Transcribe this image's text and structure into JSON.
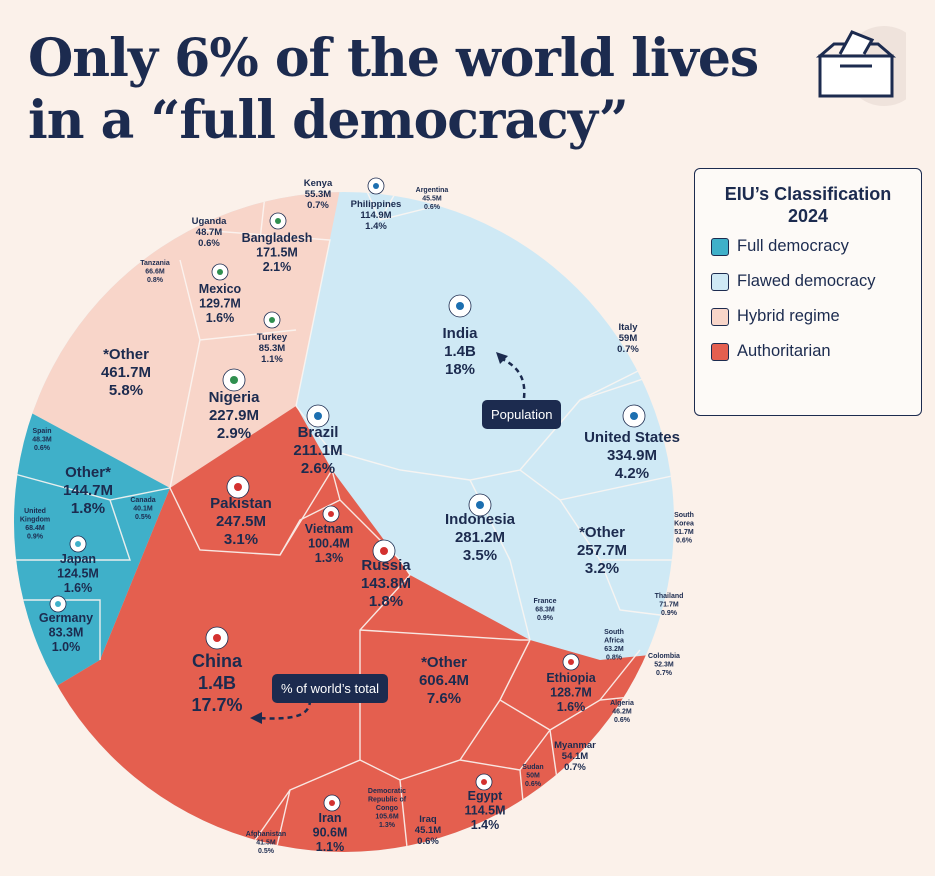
{
  "title_line1": "Only 6% of the world lives",
  "title_line2": "in a “full democracy”",
  "legend": {
    "title_line1": "EIU’s Classification",
    "title_line2": "2024",
    "items": [
      {
        "label": "Full democracy",
        "color": "#3fb0c9"
      },
      {
        "label": "Flawed democracy",
        "color": "#cfe9f5"
      },
      {
        "label": "Hybrid regime",
        "color": "#f8d5c9"
      },
      {
        "label": "Authoritarian",
        "color": "#e45f4f"
      }
    ]
  },
  "callouts": {
    "population": "Population",
    "share": "% of world’s total"
  },
  "chart_data": {
    "type": "voronoi-treemap",
    "title": "Only 6% of the world lives in a “full democracy”",
    "categories": [
      {
        "name": "Flawed democracy",
        "color": "#cfe9f5",
        "countries": [
          {
            "name": "India",
            "population": "1.4B",
            "share": "18%"
          },
          {
            "name": "Indonesia",
            "population": "281.2M",
            "share": "3.5%"
          },
          {
            "name": "United States",
            "population": "334.9M",
            "share": "4.2%"
          },
          {
            "name": "*Other",
            "population": "257.7M",
            "share": "3.2%"
          },
          {
            "name": "Brazil",
            "population": "211.1M",
            "share": "2.6%"
          },
          {
            "name": "Philippines",
            "population": "114.9M",
            "share": "1.4%"
          },
          {
            "name": "Argentina",
            "population": "45.5M",
            "share": "0.6%"
          },
          {
            "name": "Italy",
            "population": "59M",
            "share": "0.7%"
          },
          {
            "name": "South Korea",
            "population": "51.7M",
            "share": "0.6%"
          },
          {
            "name": "Thailand",
            "population": "71.7M",
            "share": "0.9%"
          },
          {
            "name": "France",
            "population": "68.3M",
            "share": "0.9%"
          },
          {
            "name": "South Africa",
            "population": "63.2M",
            "share": "0.8%"
          },
          {
            "name": "Colombia",
            "population": "52.3M",
            "share": "0.7%"
          }
        ]
      },
      {
        "name": "Hybrid regime",
        "color": "#f8d5c9",
        "countries": [
          {
            "name": "*Other",
            "population": "461.7M",
            "share": "5.8%"
          },
          {
            "name": "Nigeria",
            "population": "227.9M",
            "share": "2.9%"
          },
          {
            "name": "Bangladesh",
            "population": "171.5M",
            "share": "2.1%"
          },
          {
            "name": "Mexico",
            "population": "129.7M",
            "share": "1.6%"
          },
          {
            "name": "Turkey",
            "population": "85.3M",
            "share": "1.1%"
          },
          {
            "name": "Kenya",
            "population": "55.3M",
            "share": "0.7%"
          },
          {
            "name": "Uganda",
            "population": "48.7M",
            "share": "0.6%"
          },
          {
            "name": "Tanzania",
            "population": "66.6M",
            "share": "0.8%"
          }
        ]
      },
      {
        "name": "Full democracy",
        "color": "#3fb0c9",
        "countries": [
          {
            "name": "Other*",
            "population": "144.7M",
            "share": "1.8%"
          },
          {
            "name": "Japan",
            "population": "124.5M",
            "share": "1.6%"
          },
          {
            "name": "Germany",
            "population": "83.3M",
            "share": "1.0%"
          },
          {
            "name": "Spain",
            "population": "48.3M",
            "share": "0.6%"
          },
          {
            "name": "United Kingdom",
            "population": "68.4M",
            "share": "0.9%"
          },
          {
            "name": "Canada",
            "population": "40.1M",
            "share": "0.5%"
          }
        ]
      },
      {
        "name": "Authoritarian",
        "color": "#e45f4f",
        "countries": [
          {
            "name": "China",
            "population": "1.4B",
            "share": "17.7%"
          },
          {
            "name": "*Other",
            "population": "606.4M",
            "share": "7.6%"
          },
          {
            "name": "Pakistan",
            "population": "247.5M",
            "share": "3.1%"
          },
          {
            "name": "Russia",
            "population": "143.8M",
            "share": "1.8%"
          },
          {
            "name": "Vietnam",
            "population": "100.4M",
            "share": "1.3%"
          },
          {
            "name": "Ethiopia",
            "population": "128.7M",
            "share": "1.6%"
          },
          {
            "name": "Egypt",
            "population": "114.5M",
            "share": "1.4%"
          },
          {
            "name": "Iran",
            "population": "90.6M",
            "share": "1.1%"
          },
          {
            "name": "Democratic Republic of Congo",
            "population": "105.6M",
            "share": "1.3%"
          },
          {
            "name": "Iraq",
            "population": "45.1M",
            "share": "0.6%"
          },
          {
            "name": "Sudan",
            "population": "50M",
            "share": "0.6%"
          },
          {
            "name": "Myanmar",
            "population": "54.1M",
            "share": "0.7%"
          },
          {
            "name": "Algeria",
            "population": "46.2M",
            "share": "0.6%"
          },
          {
            "name": "Afghanistan",
            "population": "41.5M",
            "share": "0.5%"
          }
        ]
      }
    ]
  }
}
